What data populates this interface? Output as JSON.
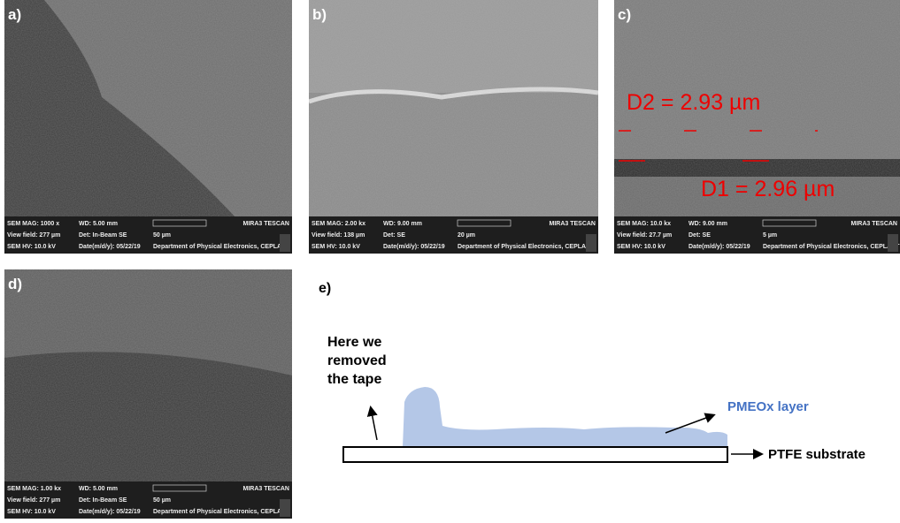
{
  "panels": [
    {
      "label": "a)",
      "info": {
        "mag": "SEM MAG: 1000 x",
        "wd": "WD: 5.00 mm",
        "brand": "MIRA3 TESCAN",
        "view_field": "View field: 277 µm",
        "det": "Det: In-Beam SE",
        "scale": "50 µm",
        "hv": "SEM HV: 10.0 kV",
        "date": "Date(m/d/y): 05/22/19",
        "dept": "Department of Physical Electronics, CEPLANT"
      }
    },
    {
      "label": "b)",
      "info": {
        "mag": "SEM MAG: 2.00 kx",
        "wd": "WD: 9.00 mm",
        "brand": "MIRA3 TESCAN",
        "view_field": "View field: 138 µm",
        "det": "Det: SE",
        "scale": "20 µm",
        "hv": "SEM HV: 10.0 kV",
        "date": "Date(m/d/y): 05/22/19",
        "dept": "Department of Physical Electronics, CEPLANT"
      }
    },
    {
      "label": "c)",
      "info": {
        "mag": "SEM MAG: 10.0 kx",
        "wd": "WD: 9.00 mm",
        "brand": "MIRA3 TESCAN",
        "view_field": "View field: 27.7 µm",
        "det": "Det: SE",
        "scale": "5 µm",
        "hv": "SEM HV: 10.0 kV",
        "date": "Date(m/d/y): 05/22/19",
        "dept": "Department of Physical Electronics, CEPLANT"
      },
      "annotations": [
        "D2 = 2.93 µm",
        "D1 = 2.96 µm"
      ]
    },
    {
      "label": "d)",
      "info": {
        "mag": "SEM MAG: 1.00 kx",
        "wd": "WD: 5.00 mm",
        "brand": "MIRA3 TESCAN",
        "view_field": "View field: 277 µm",
        "det": "Det: In-Beam SE",
        "scale": "50 µm",
        "hv": "SEM HV: 10.0 kV",
        "date": "Date(m/d/y): 05/22/19",
        "dept": "Department of Physical Electronics, CEPLANT"
      }
    }
  ],
  "diagram": {
    "label": "e)",
    "note_lines": [
      "Here we",
      "removed",
      "the tape"
    ],
    "layer": "PMEOx layer",
    "substrate": "PTFE substrate"
  }
}
